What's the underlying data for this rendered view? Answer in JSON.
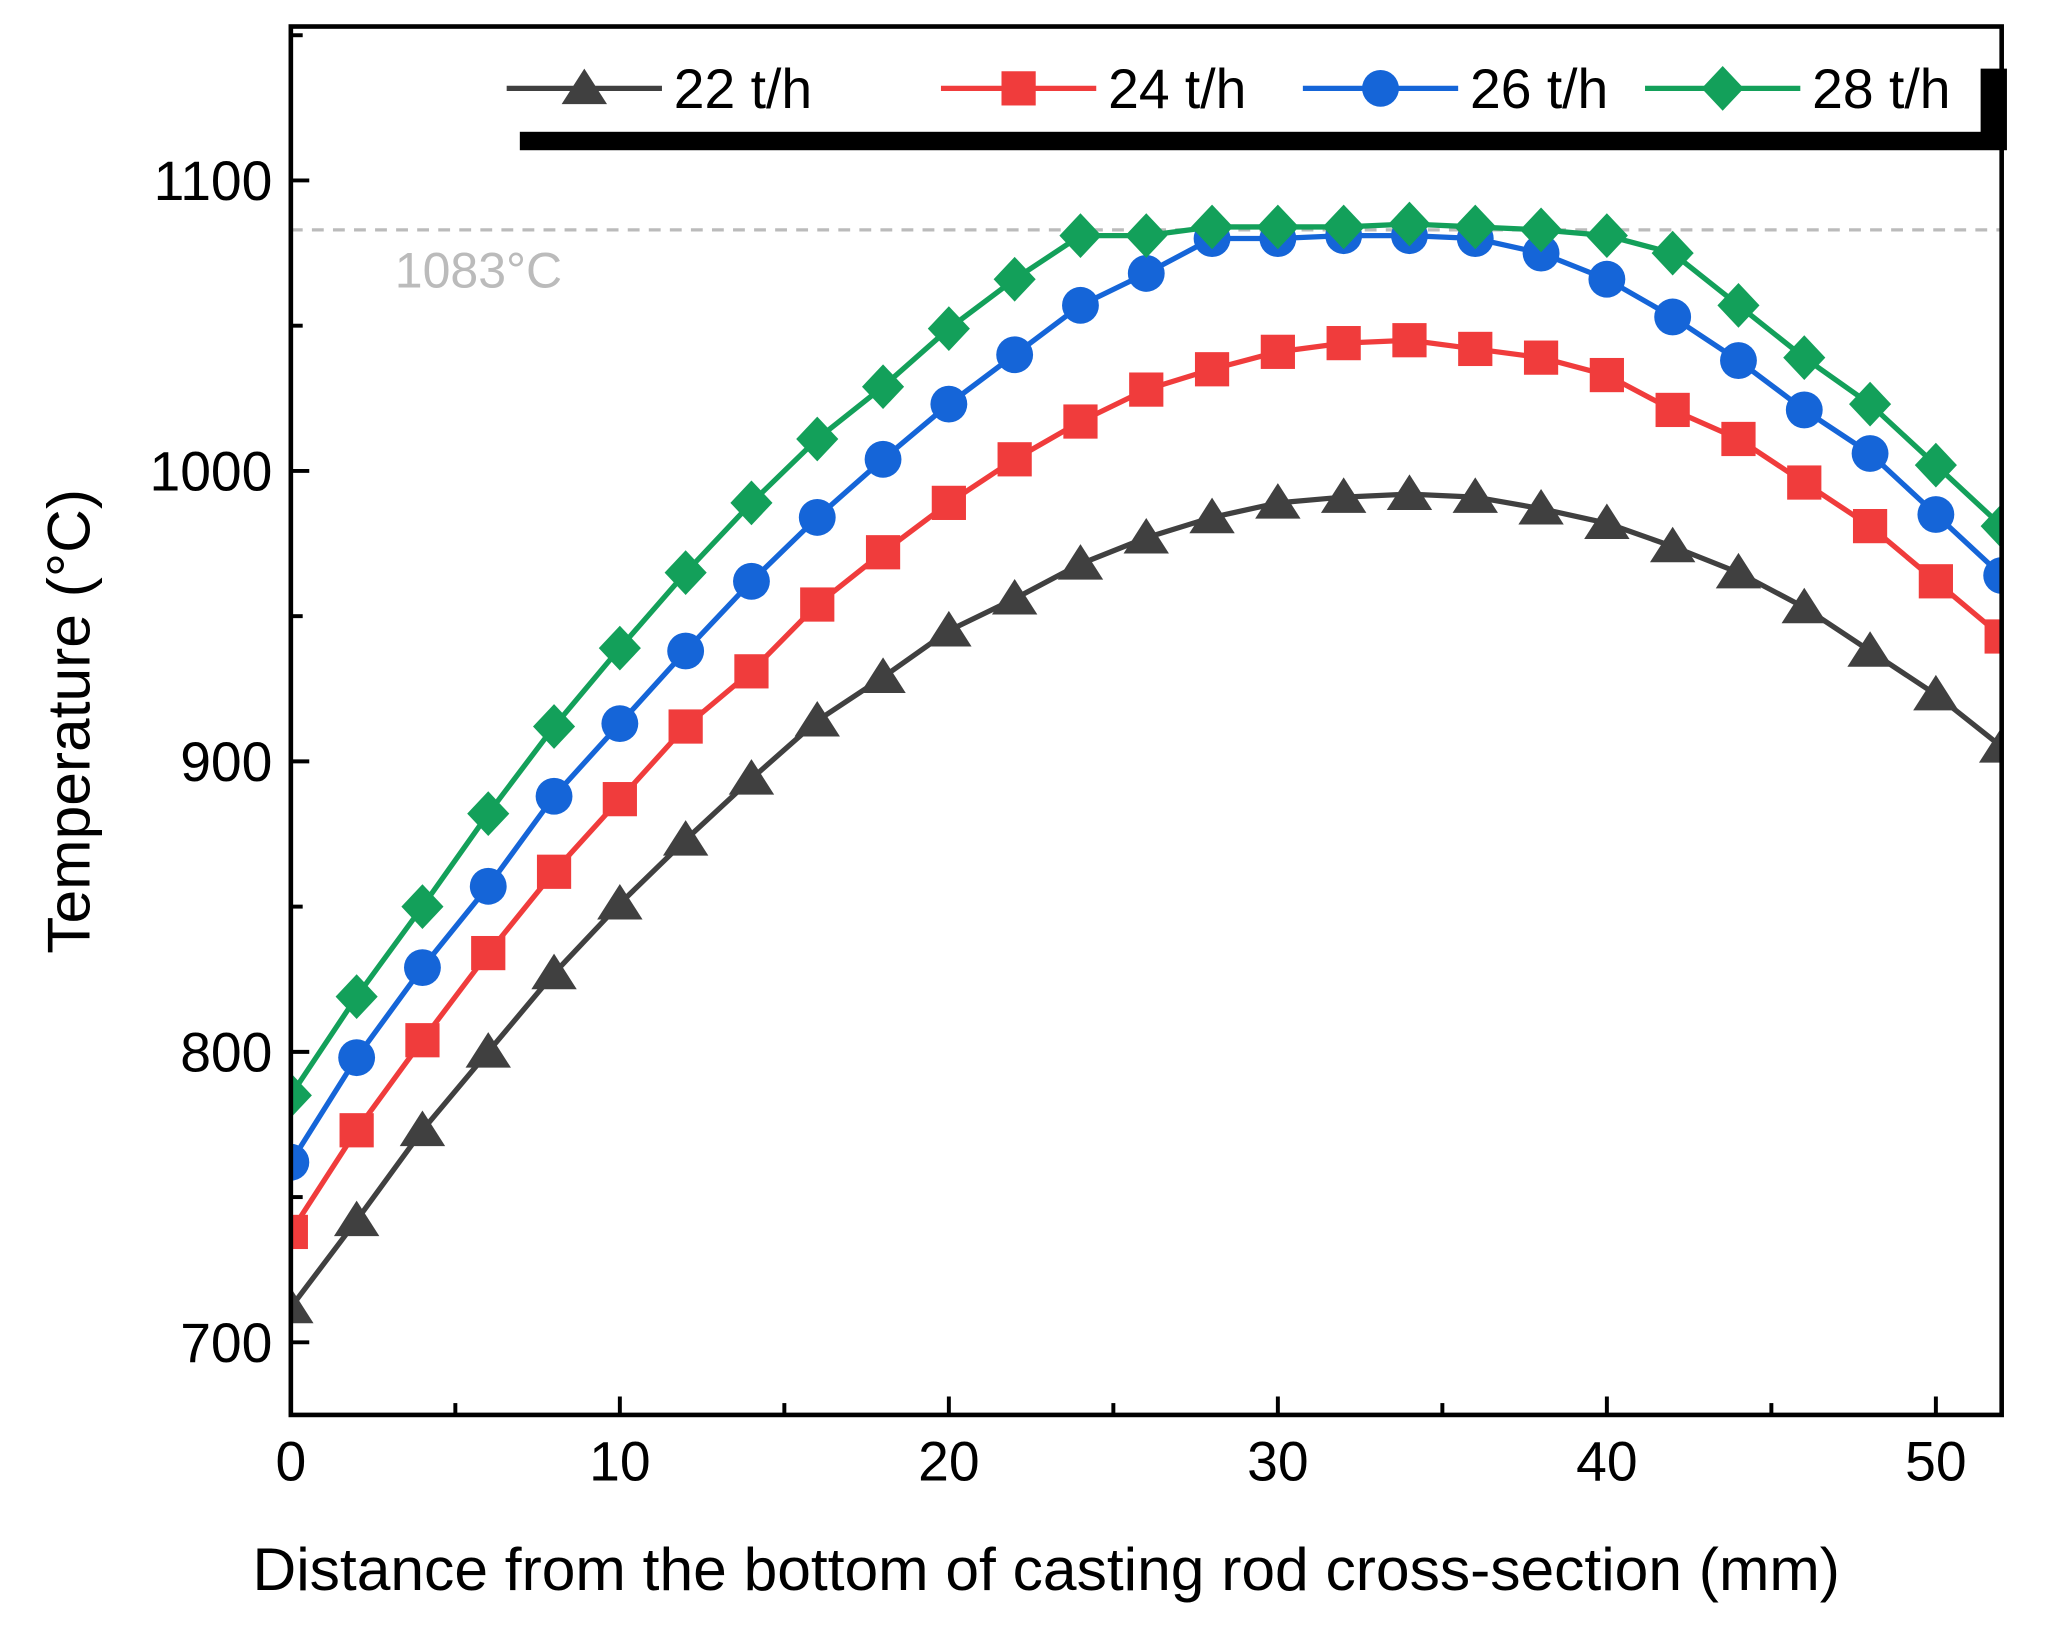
{
  "chart_data": {
    "type": "line",
    "title": "",
    "xlabel": "Distance from the bottom of casting rod cross-section  (mm)",
    "ylabel": "Temperature (°C)",
    "xlim": [
      0,
      52
    ],
    "ylim": [
      675,
      1153
    ],
    "xticks": [
      0,
      10,
      20,
      30,
      40,
      50
    ],
    "yticks": [
      700,
      800,
      900,
      1000,
      1100
    ],
    "xtick_labels": [
      "0",
      "10",
      "20",
      "30",
      "40",
      "50"
    ],
    "ytick_labels": [
      "700",
      "800",
      "900",
      "1000",
      "1100"
    ],
    "grid": false,
    "legend_position": "top",
    "reference_line": {
      "y": 1083,
      "label": "1083°C",
      "color": "#bbbbbb"
    },
    "x": [
      0,
      2,
      4,
      6,
      8,
      10,
      12,
      14,
      16,
      18,
      20,
      22,
      24,
      26,
      28,
      30,
      32,
      34,
      36,
      38,
      40,
      42,
      44,
      46,
      48,
      50,
      52
    ],
    "series": [
      {
        "name": "22 t/h",
        "color": "#404040",
        "marker": "triangle",
        "values": [
          712,
          742,
          773,
          800,
          827,
          851,
          873,
          894,
          914,
          929,
          945,
          956,
          968,
          977,
          984,
          989,
          991,
          992,
          991,
          987,
          982,
          974,
          965,
          953,
          938,
          923,
          905
        ]
      },
      {
        "name": "24 t/h",
        "color": "#f03c3c",
        "marker": "square",
        "values": [
          738,
          773,
          804,
          834,
          862,
          887,
          912,
          931,
          954,
          972,
          989,
          1004,
          1017,
          1028,
          1035,
          1041,
          1044,
          1045,
          1042,
          1039,
          1033,
          1021,
          1011,
          996,
          981,
          962,
          943
        ]
      },
      {
        "name": "26 t/h",
        "color": "#1565d8",
        "marker": "circle",
        "values": [
          762,
          798,
          829,
          857,
          888,
          913,
          938,
          962,
          984,
          1004,
          1023,
          1040,
          1057,
          1068,
          1080,
          1080,
          1081,
          1081,
          1080,
          1075,
          1066,
          1053,
          1038,
          1021,
          1006,
          985,
          964
        ]
      },
      {
        "name": "28 t/h",
        "color": "#13a05a",
        "marker": "diamond",
        "values": [
          785,
          819,
          850,
          882,
          912,
          939,
          965,
          989,
          1011,
          1029,
          1049,
          1066,
          1081,
          1081,
          1084,
          1084,
          1084,
          1085,
          1084,
          1083,
          1081,
          1075,
          1057,
          1039,
          1023,
          1002,
          981
        ]
      }
    ]
  }
}
